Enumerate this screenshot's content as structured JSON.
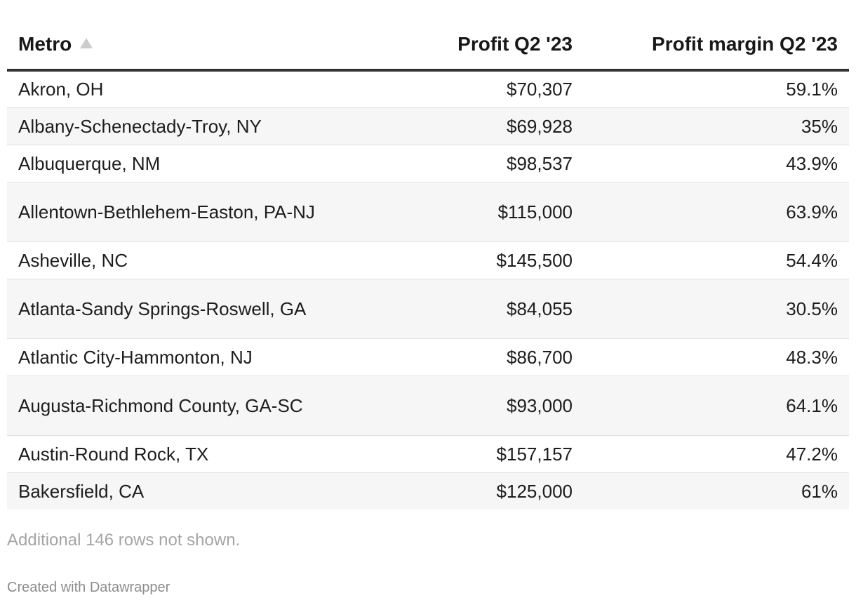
{
  "table": {
    "headers": {
      "metro": "Metro",
      "profit": "Profit Q2 '23",
      "margin": "Profit margin Q2 '23"
    },
    "sort": {
      "column": "Metro",
      "direction": "ascending",
      "icon": "sort-ascending-icon"
    },
    "rows": [
      {
        "metro": "Akron, OH",
        "profit": "$70,307",
        "margin": "59.1%"
      },
      {
        "metro": "Albany-Schenectady-Troy, NY",
        "profit": "$69,928",
        "margin": "35%"
      },
      {
        "metro": "Albuquerque, NM",
        "profit": "$98,537",
        "margin": "43.9%"
      },
      {
        "metro": "Allentown-Bethlehem-Easton, PA-NJ",
        "profit": "$115,000",
        "margin": "63.9%"
      },
      {
        "metro": "Asheville, NC",
        "profit": "$145,500",
        "margin": "54.4%"
      },
      {
        "metro": "Atlanta-Sandy Springs-Roswell, GA",
        "profit": "$84,055",
        "margin": "30.5%"
      },
      {
        "metro": "Atlantic City-Hammonton, NJ",
        "profit": "$86,700",
        "margin": "48.3%"
      },
      {
        "metro": "Augusta-Richmond County, GA-SC",
        "profit": "$93,000",
        "margin": "64.1%"
      },
      {
        "metro": "Austin-Round Rock, TX",
        "profit": "$157,157",
        "margin": "47.2%"
      },
      {
        "metro": "Bakersfield, CA",
        "profit": "$125,000",
        "margin": "61%"
      }
    ]
  },
  "footer": {
    "note": "Additional 146 rows not shown.",
    "credit": "Created with Datawrapper"
  },
  "colors": {
    "header_rule": "#333333",
    "row_stripe": "#f6f6f6",
    "row_divider": "#e1e1e1",
    "note_text": "#a5a5a5",
    "sort_icon": "#cccccc"
  }
}
